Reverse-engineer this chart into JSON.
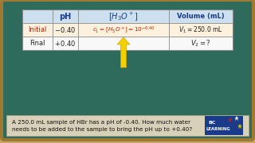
{
  "bg_outer": "#c8a86a",
  "bg_board": "#2e6b5c",
  "bg_table_header": "#cce0f0",
  "bg_row_initial": "#fdf0dc",
  "bg_row_final": "#f8f8f8",
  "text_color_dark": "#222222",
  "text_color_red": "#bb2200",
  "text_color_blue": "#1a3a8a",
  "text_color_black": "#111111",
  "arrow_color": "#f5d000",
  "arrow_edge": "#c8a800",
  "bottom_bg": "#d8d0b8",
  "bottom_text": "A 250.0 mL sample of HBr has a pH of -0.40. How much water\nneeds to be added to the sample to bring the pH up to +0.40?",
  "logo_bg": "#1a3a8a",
  "logo_text_line1": "BC",
  "logo_text_line2": "LEARNING",
  "star_colors": [
    "#cc2200",
    "#ffffff",
    "#f5d000"
  ],
  "board_edge": "#a07830"
}
